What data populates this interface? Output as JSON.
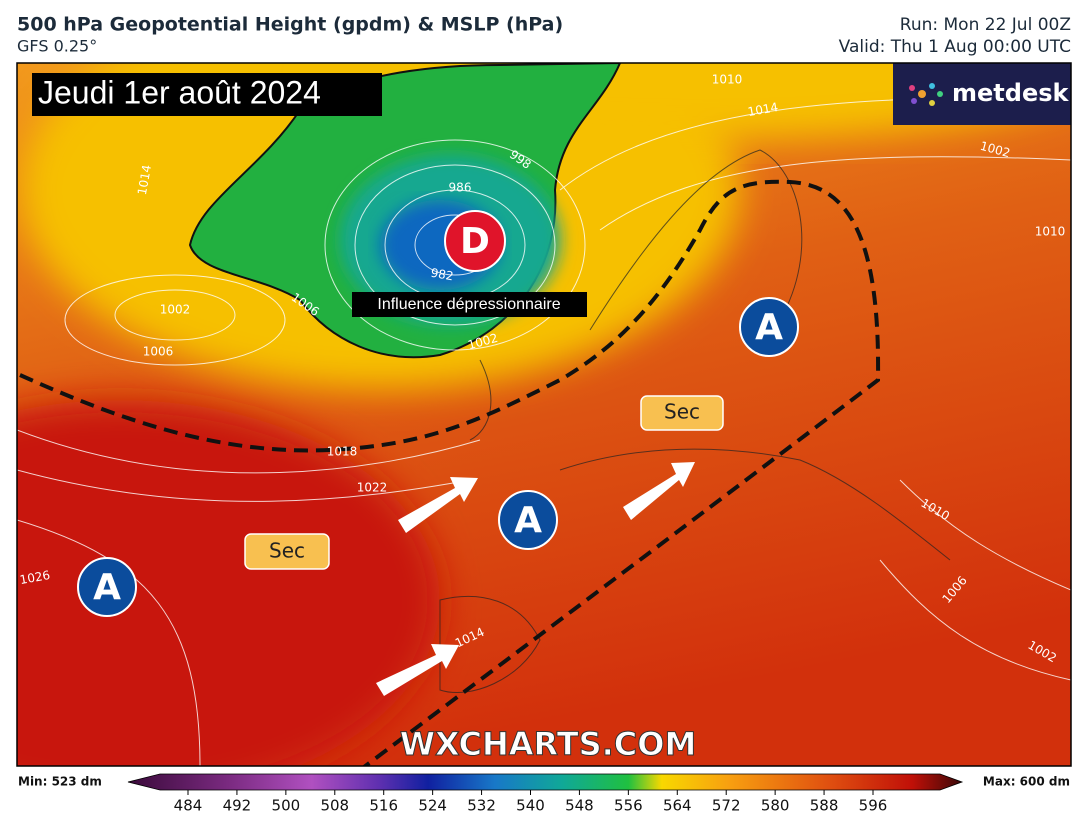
{
  "header": {
    "title": "500 hPa Geopotential Height (gpdm) & MSLP (hPa)",
    "model": "GFS 0.25°",
    "run": "Run: Mon 22 Jul 00Z",
    "valid": "Valid: Thu 1 Aug 00:00 UTC"
  },
  "map": {
    "date": "Jeudi 1er août 2024",
    "annotation": "Influence dépressionnaire",
    "dry_labels": [
      "Sec",
      "Sec"
    ],
    "highs": [
      "A",
      "A",
      "A"
    ],
    "low": "D",
    "isobar_labels": [
      "1010",
      "1014",
      "1002",
      "1014",
      "998",
      "986",
      "982",
      "1002",
      "1006",
      "1006",
      "1002",
      "1018",
      "1022",
      "1026",
      "1014",
      "1010",
      "1006",
      "1002",
      "1010"
    ]
  },
  "logo": "metdesk",
  "watermark": "WXCHARTS.COM",
  "colorbar": {
    "min_label": "Min: 523 dm",
    "max_label": "Max: 600 dm",
    "ticks": [
      484,
      492,
      500,
      508,
      516,
      524,
      532,
      540,
      548,
      556,
      564,
      572,
      580,
      588,
      596
    ]
  }
}
